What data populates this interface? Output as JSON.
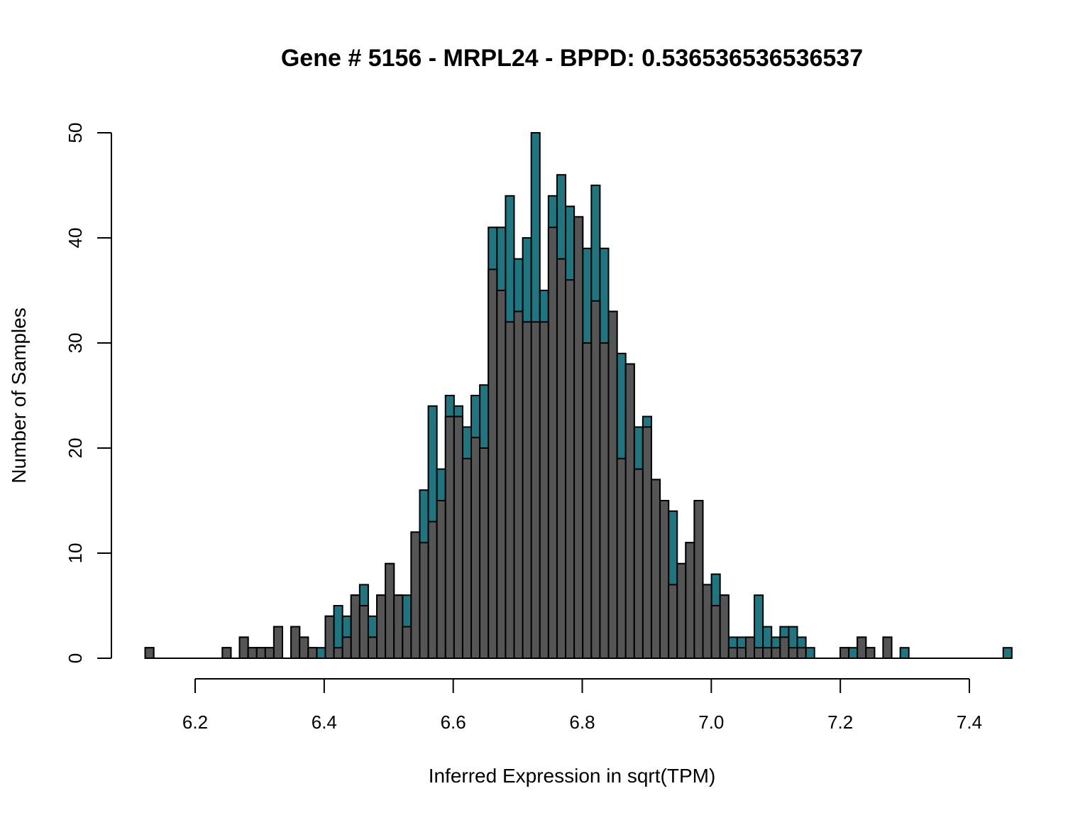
{
  "chart_data": {
    "type": "bar",
    "title": "Gene # 5156 - MRPL24 - BPPD: 0.536536536536537",
    "xlabel": "Inferred Expression in sqrt(TPM)",
    "ylabel": "Number of Samples",
    "xlim": [
      6.12,
      7.45
    ],
    "ylim": [
      0,
      50
    ],
    "x_ticks": [
      "6.2",
      "6.4",
      "6.6",
      "6.8",
      "7.0",
      "7.2",
      "7.4"
    ],
    "y_ticks": [
      "0",
      "10",
      "20",
      "30",
      "40",
      "50"
    ],
    "bin_start": 6.1225,
    "bin_width": 0.0133,
    "colors": {
      "front": "#555555",
      "back": "#1f7580"
    },
    "series": [
      {
        "values": [
          1,
          0,
          0,
          0,
          0,
          0,
          0,
          0,
          0,
          1,
          0,
          2,
          1,
          1,
          1,
          3,
          0,
          3,
          2,
          1,
          1,
          4,
          5,
          4,
          6,
          7,
          4,
          6,
          9,
          6,
          6,
          12,
          16,
          24,
          18,
          25,
          24,
          22,
          25,
          26,
          41,
          41,
          44,
          38,
          40,
          50,
          35,
          44,
          46,
          43,
          42,
          39,
          45,
          39,
          33,
          29,
          28,
          22,
          23,
          17,
          15,
          14,
          9,
          11,
          15,
          7,
          8,
          6,
          2,
          2,
          2,
          6,
          3,
          2,
          3,
          3,
          2,
          1,
          0,
          0,
          0,
          1,
          1,
          2,
          1,
          0,
          2,
          0,
          1,
          0,
          0,
          0,
          0,
          0,
          0,
          0,
          0,
          0,
          0,
          0,
          1
        ]
      },
      {
        "values": [
          1,
          0,
          0,
          0,
          0,
          0,
          0,
          0,
          0,
          1,
          0,
          2,
          1,
          1,
          1,
          3,
          0,
          3,
          2,
          1,
          0,
          4,
          1,
          2,
          6,
          5,
          2,
          6,
          9,
          6,
          3,
          12,
          11,
          13,
          15,
          23,
          23,
          19,
          21,
          20,
          37,
          35,
          32,
          33,
          32,
          32,
          32,
          41,
          38,
          36,
          42,
          30,
          34,
          30,
          33,
          19,
          28,
          18,
          22,
          17,
          15,
          7,
          9,
          11,
          15,
          7,
          5,
          6,
          1,
          1,
          2,
          1,
          1,
          1,
          2,
          1,
          1,
          0,
          0,
          0,
          0,
          1,
          0,
          2,
          1,
          0,
          2,
          0,
          0,
          0,
          0,
          0,
          0,
          0,
          0,
          0,
          0,
          0,
          0,
          0,
          0
        ]
      }
    ]
  }
}
